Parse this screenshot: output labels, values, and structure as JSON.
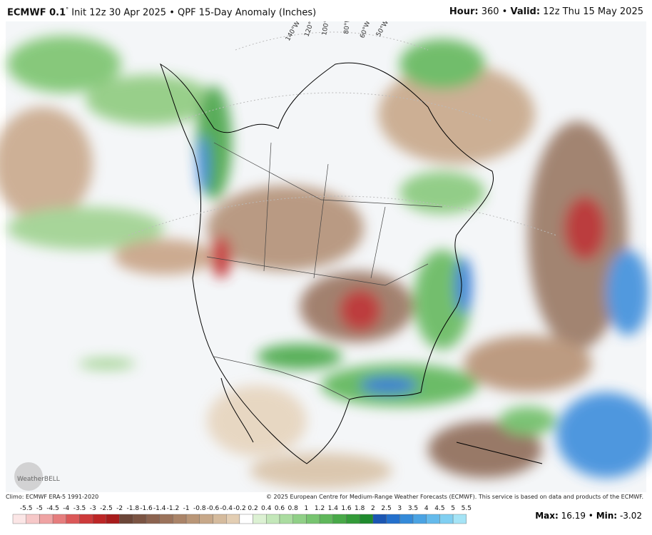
{
  "header": {
    "model": "ECMWF 0.1",
    "degree": "°",
    "title": "Init 12z 30 Apr 2025 • QPF 15-Day Anomaly (Inches)",
    "hour_label": "Hour:",
    "hour": "360 •",
    "valid_label": "Valid:",
    "valid": "12z Thu 15 May 2025"
  },
  "map": {
    "longitudes": [
      "140°W",
      "120°W",
      "100°W",
      "80°W",
      "60°W",
      "50°W"
    ],
    "watermark": "WeatherBELL"
  },
  "footer": {
    "climo": "Climo: ECMWF ERA-5 1991-2020",
    "copyright": "© 2025 European Centre for Medium-Range Weather Forecasts (ECMWF). This service is based on data and products of the ECMWF."
  },
  "colorbar": {
    "labels": [
      "-5.5",
      "-5",
      "-4.5",
      "-4",
      "-3.5",
      "-3",
      "-2.5",
      "-2",
      "-1.8",
      "-1.6",
      "-1.4",
      "-1.2",
      "-1",
      "-0.8",
      "-0.6",
      "-0.4",
      "-0.2",
      "0.2",
      "0.4",
      "0.6",
      "0.8",
      "1",
      "1.2",
      "1.4",
      "1.6",
      "1.8",
      "2",
      "2.5",
      "3",
      "3.5",
      "4",
      "4.5",
      "5",
      "5.5"
    ],
    "colors": [
      "#fbe6e6",
      "#f6c8c8",
      "#efa3a3",
      "#e67d7d",
      "#db5858",
      "#cd3a3a",
      "#bd2626",
      "#a81c1c",
      "#6b4638",
      "#7b5443",
      "#8b634f",
      "#9b735b",
      "#aa8468",
      "#b99677",
      "#c7a889",
      "#d5bb9d",
      "#e3ceb3",
      "#ffffff",
      "#dcf1d3",
      "#c3e7b9",
      "#aadca0",
      "#90d087",
      "#77c470",
      "#5fb75b",
      "#48a948",
      "#339b39",
      "#1f8a2e",
      "#1b56b3",
      "#2470cc",
      "#348ad9",
      "#4aa3e3",
      "#64baeb",
      "#80cff1",
      "#a5e4f6"
    ]
  },
  "stats": {
    "max_label": "Max:",
    "max": "16.19",
    "sep": " • ",
    "min_label": "Min:",
    "min": "-3.02"
  }
}
